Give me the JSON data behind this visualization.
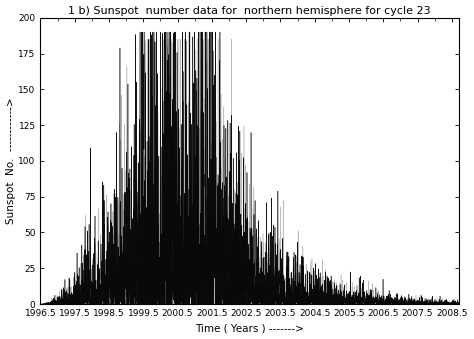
{
  "title": "1 b) Sunspot  number data for  northern hemisphere for cycle 23",
  "xlabel": "Time ( Years ) ------->",
  "ylabel": "Sunspot  No.  ------------>",
  "xlim": [
    1996.5,
    2008.7
  ],
  "ylim": [
    0,
    200
  ],
  "yticks": [
    0,
    25,
    50,
    75,
    100,
    125,
    150,
    175,
    200
  ],
  "xticks": [
    1996.5,
    1997.5,
    1998.5,
    1999.5,
    2000.5,
    2001.5,
    2002.5,
    2003.5,
    2004.5,
    2005.5,
    2006.5,
    2007.5,
    2008.5
  ],
  "xticklabels": [
    "1996.5",
    "1997.5",
    "1998.5",
    "1999.5",
    "2000.5",
    "2001.5",
    "2002.5",
    "2003.5",
    "2004.5",
    "2005.5",
    "2006.5",
    "2007.5",
    "2008.5"
  ],
  "line_color": "black",
  "grey_color": "#aaaaaa",
  "bg_color": "white",
  "seed": 42,
  "title_fontsize": 8,
  "label_fontsize": 7.5,
  "tick_fontsize": 6.5,
  "peak_envelope": 55,
  "peak_year": 2000.2,
  "peak2_envelope": 45,
  "peak2_year": 2001.5
}
